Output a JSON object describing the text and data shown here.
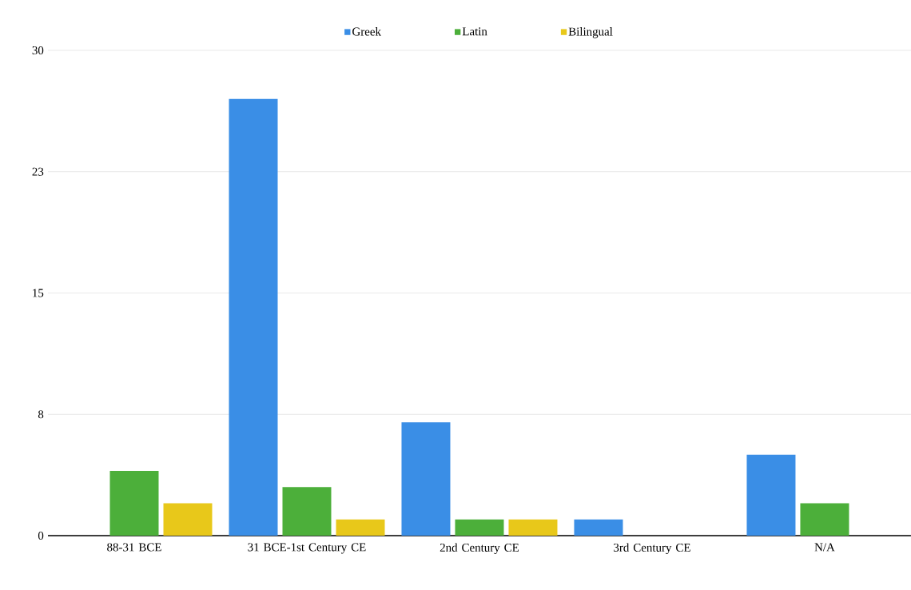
{
  "chart_data": {
    "type": "bar",
    "categories": [
      "88-31 BCE",
      "31 BCE-1st Century CE",
      "2nd Century CE",
      "3rd Century CE",
      "N/A"
    ],
    "series": [
      {
        "name": "Greek",
        "color": "#3a8ee6",
        "values": [
          0,
          27,
          7,
          1,
          5
        ]
      },
      {
        "name": "Latin",
        "color": "#4caf3a",
        "values": [
          4,
          3,
          1,
          0,
          2
        ]
      },
      {
        "name": "Bilingual",
        "color": "#e8c81a",
        "values": [
          2,
          1,
          1,
          0,
          0
        ]
      }
    ],
    "ylim": [
      0,
      30
    ],
    "yticks": [
      0,
      {
        "value": 7.5,
        "label": "8"
      },
      15,
      {
        "value": 22.5,
        "label": "23"
      },
      30
    ],
    "grid": "y",
    "legend": "top"
  }
}
